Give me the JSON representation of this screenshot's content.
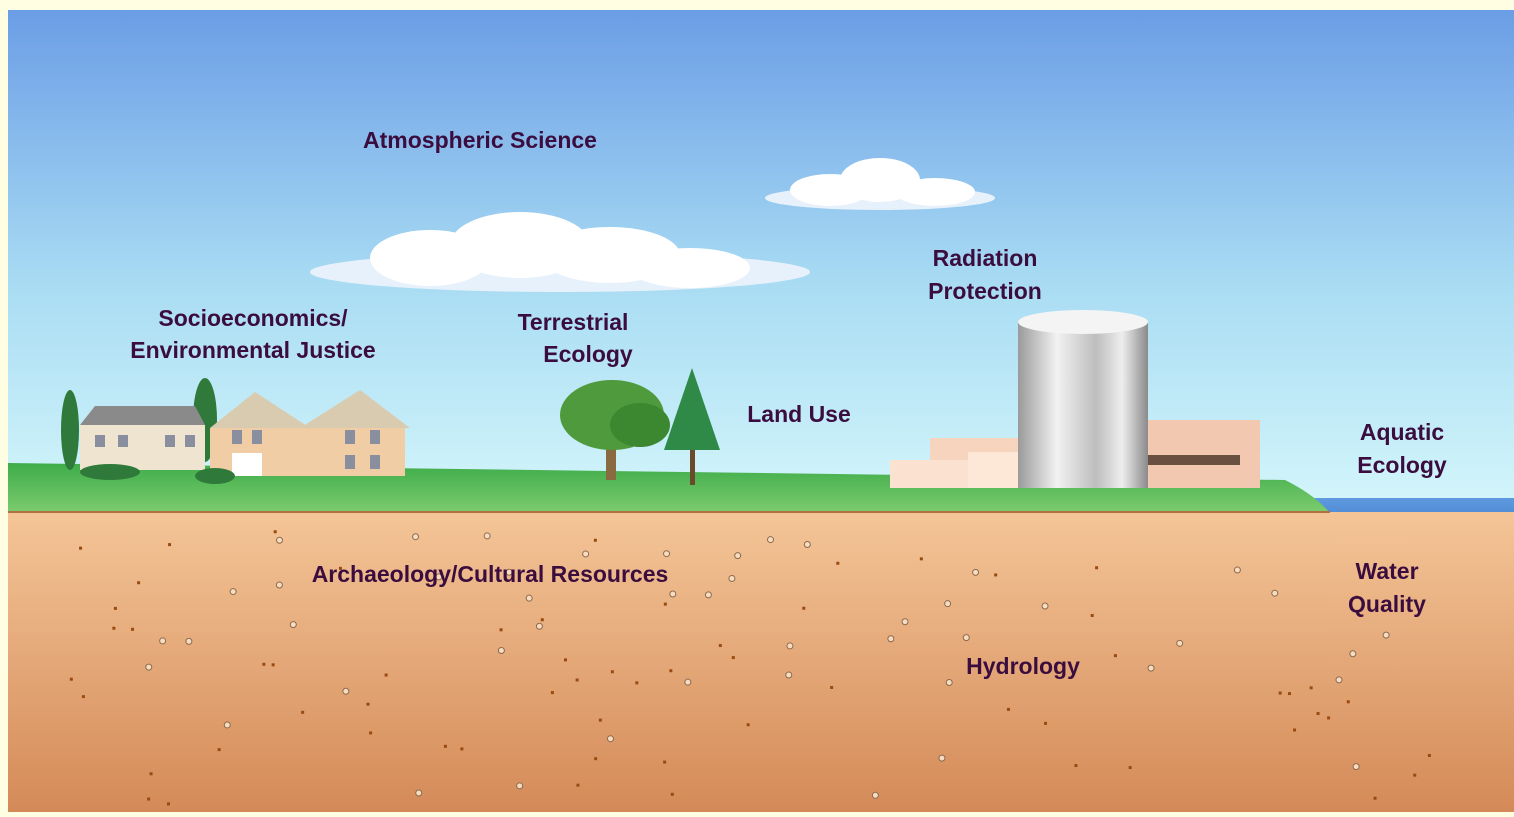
{
  "labels": [
    {
      "lines": [
        "Atmospheric Science"
      ]
    },
    {
      "lines": [
        "Radiation",
        "Protection"
      ]
    },
    {
      "lines": [
        "Socioeconomics/",
        "Environmental Justice"
      ]
    },
    {
      "lines": [
        "Terrestrial",
        "Ecology"
      ]
    },
    {
      "lines": [
        "Land Use"
      ]
    },
    {
      "lines": [
        "Aquatic",
        "Ecology"
      ]
    },
    {
      "lines": [
        "Archaeology/Cultural Resources"
      ]
    },
    {
      "lines": [
        "Water",
        "Quality"
      ]
    },
    {
      "lines": [
        "Hydrology"
      ]
    }
  ]
}
